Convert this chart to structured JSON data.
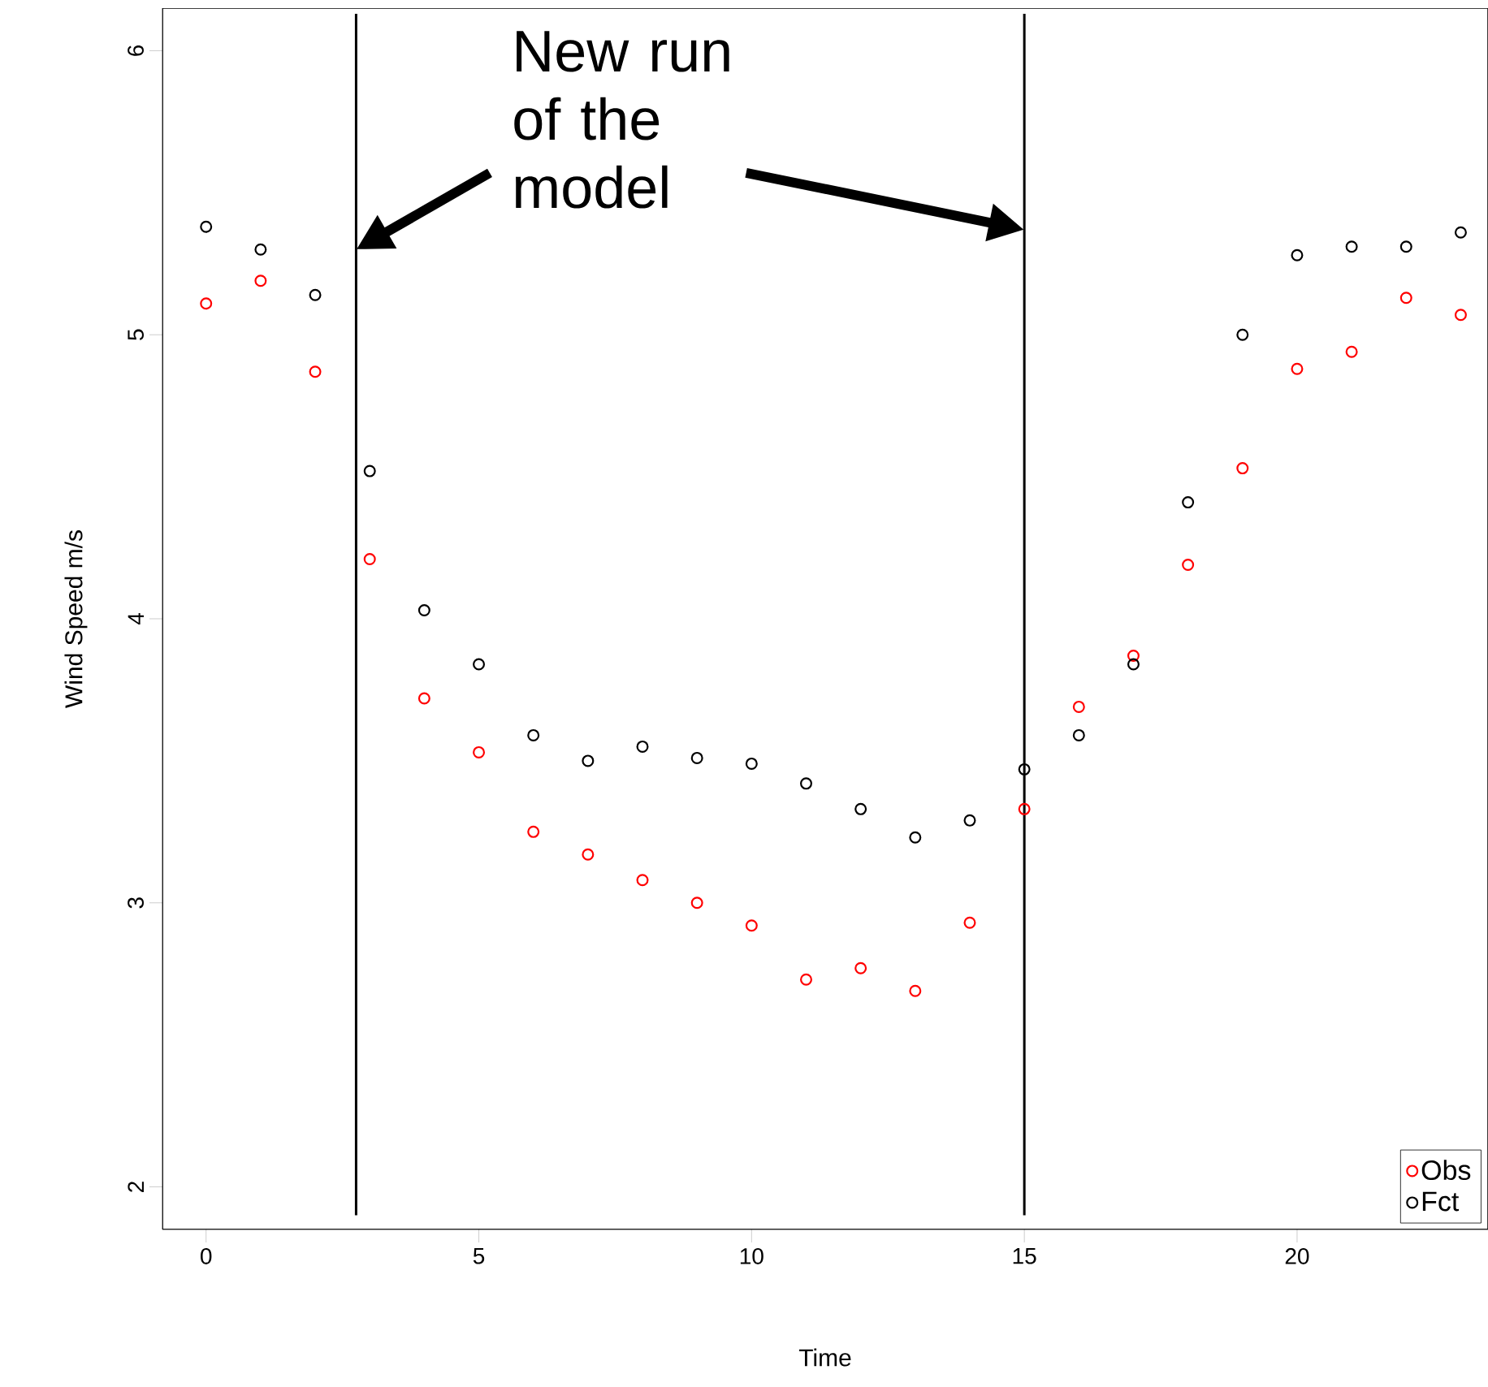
{
  "chart_data": {
    "type": "scatter",
    "xlabel": "Time",
    "ylabel": "Wind Speed m/s",
    "x": [
      0,
      1,
      2,
      3,
      4,
      5,
      6,
      7,
      8,
      9,
      10,
      11,
      12,
      13,
      14,
      15,
      16,
      17,
      18,
      19,
      20,
      21,
      22,
      23
    ],
    "series": [
      {
        "name": "Obs",
        "color": "#ff0000",
        "values": [
          5.11,
          5.19,
          4.87,
          4.21,
          3.72,
          3.53,
          3.25,
          3.17,
          3.08,
          3.0,
          2.92,
          2.73,
          2.77,
          2.69,
          2.93,
          3.33,
          3.69,
          3.87,
          4.19,
          4.53,
          4.88,
          4.94,
          5.13,
          5.07
        ]
      },
      {
        "name": "Fct",
        "color": "#000000",
        "values": [
          5.38,
          5.3,
          5.14,
          4.52,
          4.03,
          3.84,
          3.59,
          3.5,
          3.55,
          3.51,
          3.49,
          3.42,
          3.33,
          3.23,
          3.29,
          3.47,
          3.59,
          3.84,
          4.41,
          5.0,
          5.28,
          5.31,
          5.31,
          5.36
        ]
      }
    ],
    "marker": "circle",
    "legend": "bottom right",
    "grid": false,
    "xlim": [
      -0.8,
      23.5
    ],
    "ylim": [
      1.85,
      6.15
    ],
    "xticks": [
      0,
      5,
      10,
      15,
      20
    ],
    "yticks": [
      2,
      3,
      4,
      5,
      6
    ],
    "ref_lines": [
      {
        "axis": "x",
        "value": 2.75,
        "label": null,
        "color": "#000000"
      },
      {
        "axis": "x",
        "value": 15,
        "label": null,
        "color": "#000000"
      }
    ],
    "annotations": [
      "New run\nof the\nmodel"
    ]
  }
}
